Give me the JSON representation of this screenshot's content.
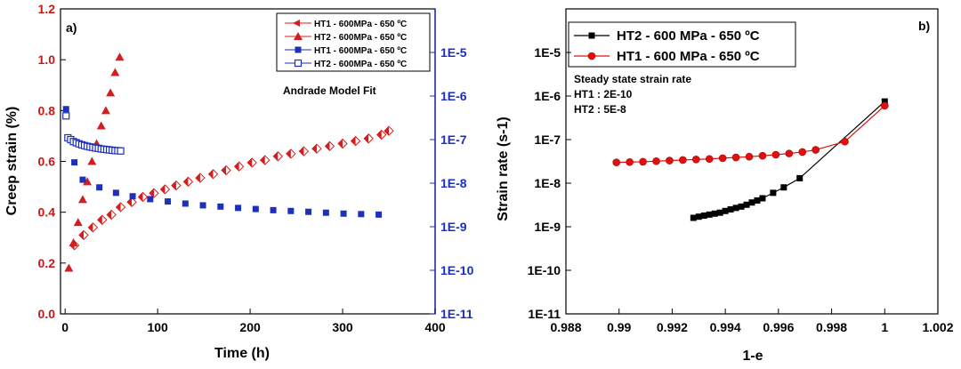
{
  "chart_data": [
    {
      "panel_label": "a)",
      "type": "scatter",
      "xlabel": "Time (h)",
      "ylabel": "Creep strain (%)",
      "xlim": [
        -5,
        400
      ],
      "ylim": [
        0,
        1.2
      ],
      "x_ticks": [
        "0",
        "100",
        "200",
        "300",
        "400"
      ],
      "y_ticks": [
        "0.0",
        "0.2",
        "0.4",
        "0.6",
        "0.8",
        "1.0",
        "1.2"
      ],
      "y2_scale": "log",
      "y2lim": [
        1e-11,
        0.0001
      ],
      "y2_ticks": [
        "1E-11",
        "1E-10",
        "1E-9",
        "1E-8",
        "1E-7",
        "1E-6",
        "1E-5"
      ],
      "annotation": "Andrade Model Fit",
      "grid": false,
      "legend_position": "top-right",
      "series": [
        {
          "name": "HT1 - 600MPa - 650 ºC",
          "axis": "left",
          "color": "#d11f1f",
          "marker": "diamond-half",
          "x": [
            10,
            20,
            30,
            40,
            50,
            60,
            72,
            84,
            96,
            108,
            120,
            133,
            146,
            160,
            174,
            188,
            202,
            216,
            230,
            244,
            258,
            272,
            286,
            300,
            314,
            328,
            342,
            350
          ],
          "y": [
            0.27,
            0.31,
            0.34,
            0.37,
            0.39,
            0.42,
            0.44,
            0.46,
            0.475,
            0.49,
            0.505,
            0.52,
            0.535,
            0.55,
            0.565,
            0.58,
            0.595,
            0.605,
            0.62,
            0.63,
            0.64,
            0.65,
            0.66,
            0.67,
            0.68,
            0.69,
            0.705,
            0.72
          ]
        },
        {
          "name": "HT2 - 600MPa - 650 ºC",
          "axis": "left",
          "color": "#d11f1f",
          "marker": "triangle",
          "x": [
            4,
            9,
            14,
            19,
            24,
            29,
            34,
            39,
            44,
            49,
            54,
            59
          ],
          "y": [
            0.18,
            0.28,
            0.36,
            0.45,
            0.52,
            0.6,
            0.67,
            0.74,
            0.8,
            0.87,
            0.95,
            1.01
          ]
        },
        {
          "name": "HT1 - 600MPa - 650 ºC",
          "axis": "right",
          "color": "#1c2fbd",
          "marker": "square",
          "x": [
            1,
            10,
            19,
            37,
            55,
            73,
            92,
            111,
            130,
            149,
            168,
            187,
            206,
            225,
            244,
            263,
            282,
            301,
            320,
            339
          ],
          "y": [
            5e-07,
            3e-08,
            1.2e-08,
            8e-09,
            6e-09,
            5e-09,
            4.3e-09,
            3.8e-09,
            3.4e-09,
            3.1e-09,
            2.9e-09,
            2.7e-09,
            2.55e-09,
            2.4e-09,
            2.3e-09,
            2.2e-09,
            2.1e-09,
            2e-09,
            1.95e-09,
            1.9e-09
          ]
        },
        {
          "name": "HT2 - 600MPa - 650 ºC",
          "axis": "right",
          "color": "#1c2fbd",
          "marker": "square-open",
          "x": [
            1,
            3,
            6,
            9,
            12,
            15,
            18,
            21,
            24,
            27,
            30,
            33,
            36,
            39,
            42,
            45,
            48,
            51,
            54,
            57,
            60
          ],
          "y": [
            3.5e-07,
            1.1e-07,
            1e-07,
            9e-08,
            8.5e-08,
            8e-08,
            7.6e-08,
            7.3e-08,
            7e-08,
            6.8e-08,
            6.6e-08,
            6.4e-08,
            6.3e-08,
            6.1e-08,
            6e-08,
            5.9e-08,
            5.8e-08,
            5.7e-08,
            5.6e-08,
            5.55e-08,
            5.5e-08
          ]
        }
      ]
    },
    {
      "panel_label": "b)",
      "type": "line",
      "xlabel": "1-e",
      "ylabel": "Strain rate (s-1)",
      "xlim": [
        0.988,
        1.002
      ],
      "y_scale": "log",
      "ylim": [
        1e-11,
        0.0001
      ],
      "x_ticks": [
        "0.988",
        "0.99",
        "0.992",
        "0.994",
        "0.996",
        "0.998",
        "1",
        "1.002"
      ],
      "y_ticks": [
        "1E-11",
        "1E-10",
        "1E-9",
        "1E-8",
        "1E-7",
        "1E-6",
        "1E-5"
      ],
      "annotation_lines": [
        "Steady state strain rate",
        "HT1 : 2E-10",
        "HT2 : 5E-8"
      ],
      "grid": false,
      "legend_position": "top-left",
      "series": [
        {
          "name": "HT2 - 600 MPa - 650 ºC",
          "color": "#000000",
          "marker": "square",
          "x": [
            0.9928,
            0.993,
            0.9932,
            0.9934,
            0.9936,
            0.9938,
            0.994,
            0.9942,
            0.9944,
            0.9946,
            0.9948,
            0.995,
            0.9952,
            0.9954,
            0.9958,
            0.9962,
            0.9968,
            1.0
          ],
          "y": [
            1.6e-09,
            1.7e-09,
            1.8e-09,
            1.9e-09,
            2e-09,
            2.1e-09,
            2.3e-09,
            2.5e-09,
            2.7e-09,
            2.9e-09,
            3.2e-09,
            3.6e-09,
            4e-09,
            4.5e-09,
            6e-09,
            8e-09,
            1.3e-08,
            7.5e-07
          ]
        },
        {
          "name": "HT1 - 600 MPa - 650 ºC",
          "color": "#e01010",
          "marker": "circle",
          "x": [
            0.9899,
            0.9904,
            0.9909,
            0.9914,
            0.9919,
            0.9924,
            0.9929,
            0.9934,
            0.9939,
            0.9944,
            0.9949,
            0.9954,
            0.9959,
            0.9964,
            0.9969,
            0.9974,
            0.9985,
            1.0
          ],
          "y": [
            3e-08,
            3.05e-08,
            3.1e-08,
            3.2e-08,
            3.3e-08,
            3.4e-08,
            3.5e-08,
            3.6e-08,
            3.75e-08,
            3.9e-08,
            4.05e-08,
            4.25e-08,
            4.5e-08,
            4.8e-08,
            5.2e-08,
            5.8e-08,
            9e-08,
            6e-07
          ]
        }
      ]
    }
  ]
}
